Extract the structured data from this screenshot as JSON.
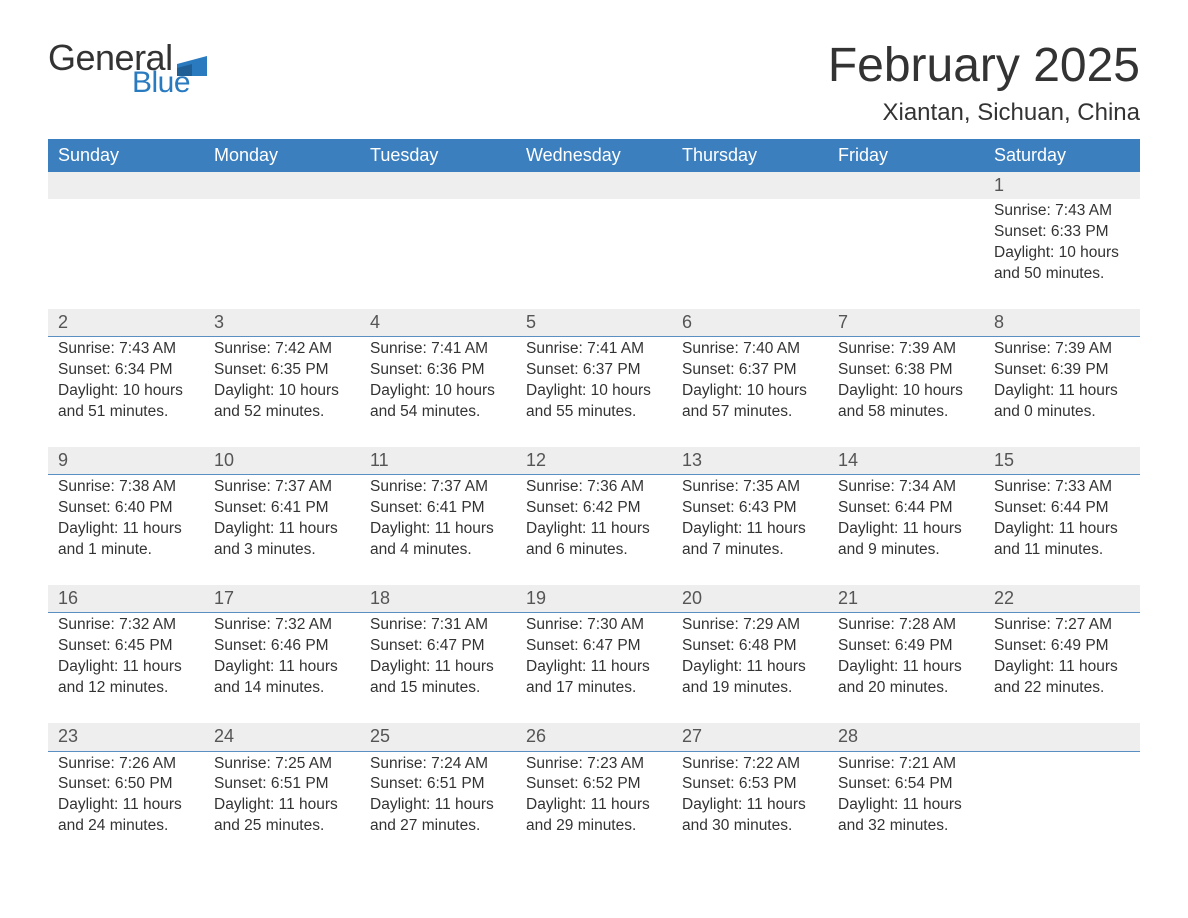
{
  "brand": {
    "name_part1": "General",
    "name_part2": "Blue",
    "flag_color": "#2a7ac0",
    "text_color_dark": "#333333",
    "text_color_blue": "#2a7ac0"
  },
  "header": {
    "month_title": "February 2025",
    "location": "Xiantan, Sichuan, China"
  },
  "calendar": {
    "header_bg": "#3b7fbf",
    "header_fg": "#ffffff",
    "daynum_bg": "#eeeeee",
    "row_border_color": "#5a8fc4",
    "columns": [
      "Sunday",
      "Monday",
      "Tuesday",
      "Wednesday",
      "Thursday",
      "Friday",
      "Saturday"
    ],
    "weeks": [
      [
        {
          "day": "",
          "lines": []
        },
        {
          "day": "",
          "lines": []
        },
        {
          "day": "",
          "lines": []
        },
        {
          "day": "",
          "lines": []
        },
        {
          "day": "",
          "lines": []
        },
        {
          "day": "",
          "lines": []
        },
        {
          "day": "1",
          "lines": [
            "Sunrise: 7:43 AM",
            "Sunset: 6:33 PM",
            "Daylight: 10 hours and 50 minutes."
          ]
        }
      ],
      [
        {
          "day": "2",
          "lines": [
            "Sunrise: 7:43 AM",
            "Sunset: 6:34 PM",
            "Daylight: 10 hours and 51 minutes."
          ]
        },
        {
          "day": "3",
          "lines": [
            "Sunrise: 7:42 AM",
            "Sunset: 6:35 PM",
            "Daylight: 10 hours and 52 minutes."
          ]
        },
        {
          "day": "4",
          "lines": [
            "Sunrise: 7:41 AM",
            "Sunset: 6:36 PM",
            "Daylight: 10 hours and 54 minutes."
          ]
        },
        {
          "day": "5",
          "lines": [
            "Sunrise: 7:41 AM",
            "Sunset: 6:37 PM",
            "Daylight: 10 hours and 55 minutes."
          ]
        },
        {
          "day": "6",
          "lines": [
            "Sunrise: 7:40 AM",
            "Sunset: 6:37 PM",
            "Daylight: 10 hours and 57 minutes."
          ]
        },
        {
          "day": "7",
          "lines": [
            "Sunrise: 7:39 AM",
            "Sunset: 6:38 PM",
            "Daylight: 10 hours and 58 minutes."
          ]
        },
        {
          "day": "8",
          "lines": [
            "Sunrise: 7:39 AM",
            "Sunset: 6:39 PM",
            "Daylight: 11 hours and 0 minutes."
          ]
        }
      ],
      [
        {
          "day": "9",
          "lines": [
            "Sunrise: 7:38 AM",
            "Sunset: 6:40 PM",
            "Daylight: 11 hours and 1 minute."
          ]
        },
        {
          "day": "10",
          "lines": [
            "Sunrise: 7:37 AM",
            "Sunset: 6:41 PM",
            "Daylight: 11 hours and 3 minutes."
          ]
        },
        {
          "day": "11",
          "lines": [
            "Sunrise: 7:37 AM",
            "Sunset: 6:41 PM",
            "Daylight: 11 hours and 4 minutes."
          ]
        },
        {
          "day": "12",
          "lines": [
            "Sunrise: 7:36 AM",
            "Sunset: 6:42 PM",
            "Daylight: 11 hours and 6 minutes."
          ]
        },
        {
          "day": "13",
          "lines": [
            "Sunrise: 7:35 AM",
            "Sunset: 6:43 PM",
            "Daylight: 11 hours and 7 minutes."
          ]
        },
        {
          "day": "14",
          "lines": [
            "Sunrise: 7:34 AM",
            "Sunset: 6:44 PM",
            "Daylight: 11 hours and 9 minutes."
          ]
        },
        {
          "day": "15",
          "lines": [
            "Sunrise: 7:33 AM",
            "Sunset: 6:44 PM",
            "Daylight: 11 hours and 11 minutes."
          ]
        }
      ],
      [
        {
          "day": "16",
          "lines": [
            "Sunrise: 7:32 AM",
            "Sunset: 6:45 PM",
            "Daylight: 11 hours and 12 minutes."
          ]
        },
        {
          "day": "17",
          "lines": [
            "Sunrise: 7:32 AM",
            "Sunset: 6:46 PM",
            "Daylight: 11 hours and 14 minutes."
          ]
        },
        {
          "day": "18",
          "lines": [
            "Sunrise: 7:31 AM",
            "Sunset: 6:47 PM",
            "Daylight: 11 hours and 15 minutes."
          ]
        },
        {
          "day": "19",
          "lines": [
            "Sunrise: 7:30 AM",
            "Sunset: 6:47 PM",
            "Daylight: 11 hours and 17 minutes."
          ]
        },
        {
          "day": "20",
          "lines": [
            "Sunrise: 7:29 AM",
            "Sunset: 6:48 PM",
            "Daylight: 11 hours and 19 minutes."
          ]
        },
        {
          "day": "21",
          "lines": [
            "Sunrise: 7:28 AM",
            "Sunset: 6:49 PM",
            "Daylight: 11 hours and 20 minutes."
          ]
        },
        {
          "day": "22",
          "lines": [
            "Sunrise: 7:27 AM",
            "Sunset: 6:49 PM",
            "Daylight: 11 hours and 22 minutes."
          ]
        }
      ],
      [
        {
          "day": "23",
          "lines": [
            "Sunrise: 7:26 AM",
            "Sunset: 6:50 PM",
            "Daylight: 11 hours and 24 minutes."
          ]
        },
        {
          "day": "24",
          "lines": [
            "Sunrise: 7:25 AM",
            "Sunset: 6:51 PM",
            "Daylight: 11 hours and 25 minutes."
          ]
        },
        {
          "day": "25",
          "lines": [
            "Sunrise: 7:24 AM",
            "Sunset: 6:51 PM",
            "Daylight: 11 hours and 27 minutes."
          ]
        },
        {
          "day": "26",
          "lines": [
            "Sunrise: 7:23 AM",
            "Sunset: 6:52 PM",
            "Daylight: 11 hours and 29 minutes."
          ]
        },
        {
          "day": "27",
          "lines": [
            "Sunrise: 7:22 AM",
            "Sunset: 6:53 PM",
            "Daylight: 11 hours and 30 minutes."
          ]
        },
        {
          "day": "28",
          "lines": [
            "Sunrise: 7:21 AM",
            "Sunset: 6:54 PM",
            "Daylight: 11 hours and 32 minutes."
          ]
        },
        {
          "day": "",
          "lines": []
        }
      ]
    ]
  }
}
